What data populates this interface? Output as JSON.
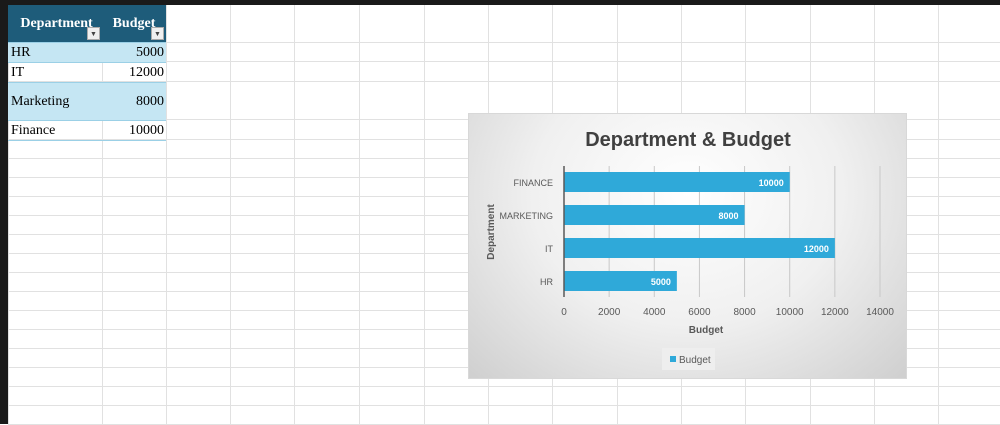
{
  "table": {
    "headers": [
      "Department",
      "Budget"
    ],
    "rows": [
      {
        "department": "HR",
        "budget": "5000"
      },
      {
        "department": "IT",
        "budget": "12000"
      },
      {
        "department": "Marketing",
        "budget": "8000"
      },
      {
        "department": "Finance",
        "budget": "10000"
      }
    ]
  },
  "colors": {
    "header": "#1e5c7a",
    "band": "#c5e6f3",
    "bar": "#2fa9d9"
  },
  "chart_data": {
    "type": "bar",
    "orientation": "horizontal",
    "title": "Department & Budget",
    "xlabel": "Budget",
    "ylabel": "Department",
    "categories": [
      "HR",
      "IT",
      "MARKETING",
      "FINANCE"
    ],
    "series": [
      {
        "name": "Budget",
        "values": [
          5000,
          12000,
          8000,
          10000
        ]
      }
    ],
    "xlim": [
      0,
      14000
    ],
    "xticks": [
      0,
      2000,
      4000,
      6000,
      8000,
      10000,
      12000,
      14000
    ],
    "grid": true,
    "data_labels": true,
    "legend": "bottom"
  }
}
